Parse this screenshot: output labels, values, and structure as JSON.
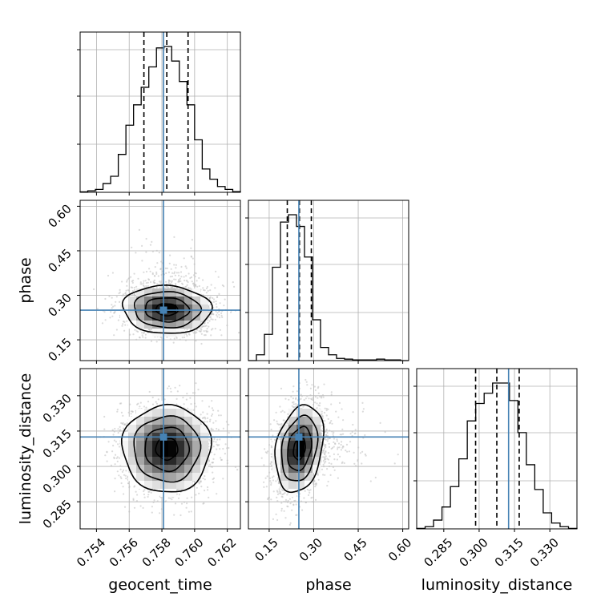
{
  "chart_data": {
    "type": "corner",
    "grid": true,
    "parameters": [
      {
        "name": "geocent_time",
        "label": "geocent_time",
        "range": [
          0.753,
          0.7628
        ],
        "ticks": [
          0.754,
          0.756,
          0.758,
          0.76,
          0.762
        ],
        "tick_labels": [
          "0.754",
          "0.756",
          "0.758",
          "0.760",
          "0.762"
        ],
        "truth": 0.7581,
        "quantiles": [
          0.7569,
          0.7583,
          0.7596
        ]
      },
      {
        "name": "phase",
        "label": "phase",
        "range": [
          0.08,
          0.62
        ],
        "ticks": [
          0.15,
          0.3,
          0.45,
          0.6
        ],
        "tick_labels": [
          "0.15",
          "0.30",
          "0.45",
          "0.60"
        ],
        "truth": 0.25,
        "quantiles": [
          0.211,
          0.252,
          0.292
        ]
      },
      {
        "name": "luminosity_distance",
        "label": "luminosity_distance",
        "range": [
          0.2735,
          0.3415
        ],
        "ticks": [
          0.285,
          0.3,
          0.315,
          0.33
        ],
        "tick_labels": [
          "0.285",
          "0.300",
          "0.315",
          "0.330"
        ],
        "truth": 0.3125,
        "quantiles": [
          0.2985,
          0.3075,
          0.317
        ]
      }
    ],
    "histograms": [
      {
        "param": "geocent_time",
        "counts": [
          0.3,
          1,
          2,
          6,
          11,
          26,
          46,
          60,
          72,
          86,
          99,
          100,
          90,
          76,
          60,
          36,
          16,
          9,
          4,
          2,
          0.5
        ]
      },
      {
        "param": "phase",
        "counts": [
          0,
          4,
          18,
          64,
          95,
          100,
          92,
          71,
          28,
          9,
          4,
          1.5,
          1,
          0.5,
          0.5,
          0.5,
          1,
          0.5,
          0.5,
          0
        ]
      },
      {
        "param": "luminosity_distance",
        "counts": [
          0.3,
          1.5,
          6,
          15,
          29,
          48,
          74,
          86,
          93,
          100,
          100,
          88,
          66,
          44,
          27,
          11,
          4,
          1.5,
          0.3
        ]
      }
    ],
    "contour_levels": [
      "0.5",
      "1.0",
      "1.5",
      "2.0"
    ],
    "scatter": {
      "color": "#bdbdbd"
    },
    "truth_color": "#4682b4",
    "hist_color": "#000000",
    "quantile_style": "dashed"
  }
}
